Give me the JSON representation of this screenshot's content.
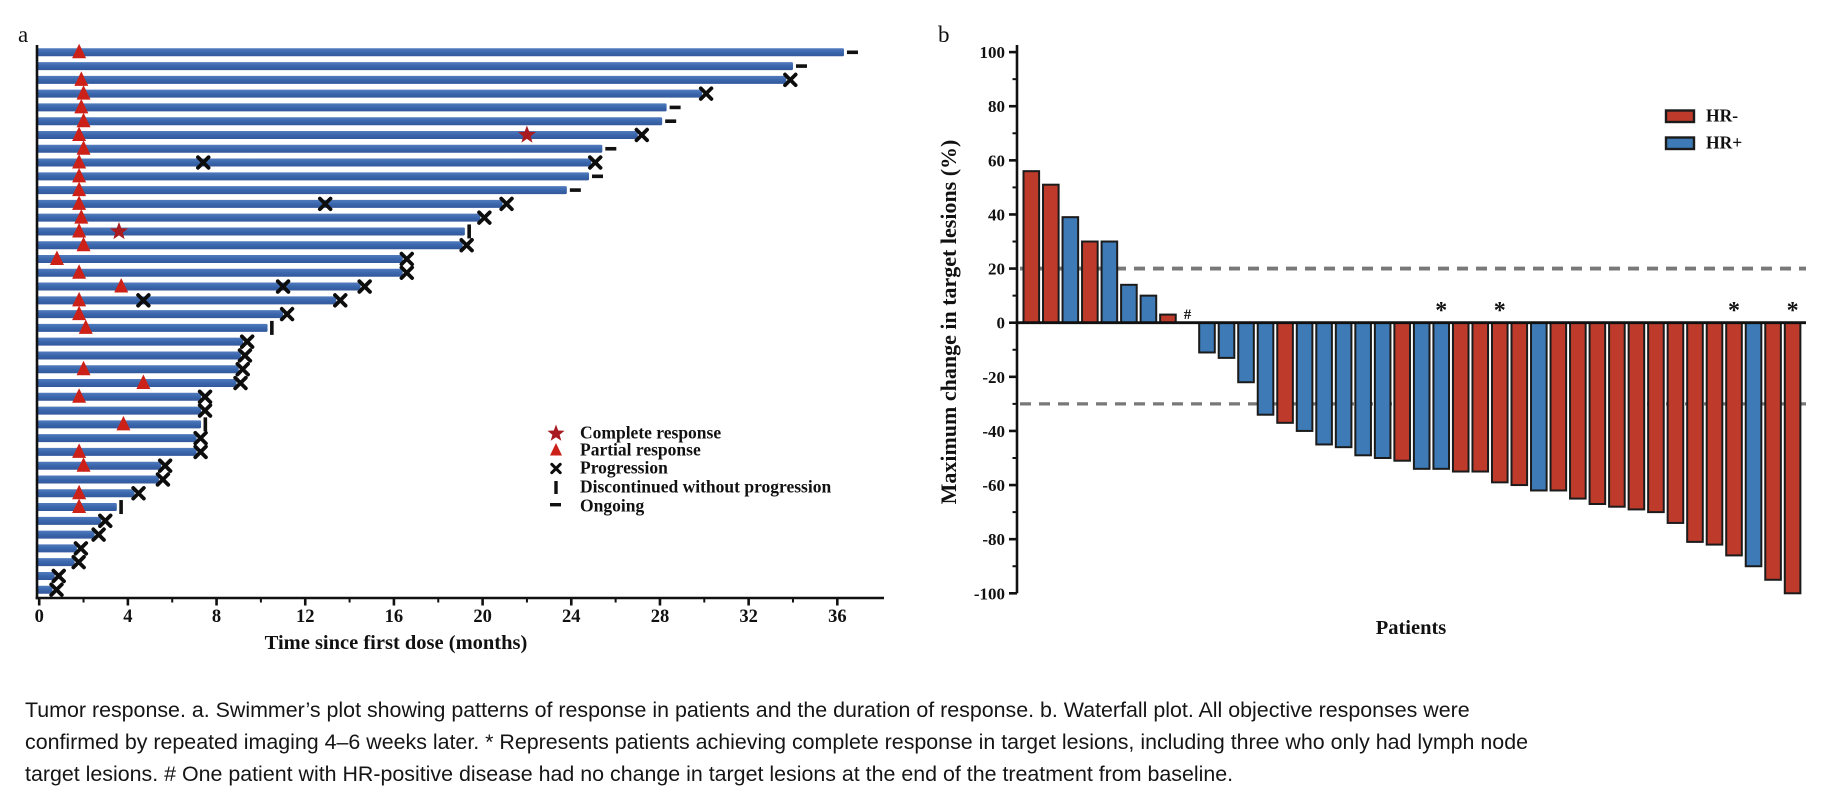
{
  "figure": {
    "caption": "Tumor response. a. Swimmer’s plot showing patterns of response in patients and the duration of response. b. Waterfall plot. All objective responses were confirmed by repeated imaging 4–6 weeks later. * Represents patients achieving complete response in target lesions, including three who only had lymph node target lesions. # One patient with HR-positive disease had no change in target lesions at the end of the treatment from baseline.",
    "panel_a_letter": "a",
    "panel_b_letter": "b",
    "panel_a_xlabel": "Time since first dose (months)",
    "panel_b_ylabel": "Maximum change in target lesions (%)",
    "panel_b_xlabel": "Patients"
  },
  "chart_data": [
    {
      "type": "bar",
      "subtype": "swimmer",
      "title": "a",
      "xlabel": "Time since first dose (months)",
      "xlim": [
        0,
        38
      ],
      "x_ticks": [
        0,
        4,
        8,
        12,
        16,
        20,
        24,
        28,
        32,
        36
      ],
      "x_minor_step": 2,
      "grid": false,
      "bar_color": "#3A66AC",
      "bar_color_light": "#507ABD",
      "marker_colors": {
        "complete_response": "#A81B20",
        "partial_response": "#CC2118",
        "progression": "#111111"
      },
      "legend_position": "lower-right-inside",
      "legend": [
        {
          "icon": "star-icon",
          "label": "Complete response"
        },
        {
          "icon": "triangle-icon",
          "label": "Partial response"
        },
        {
          "icon": "x-icon",
          "label": "Progression"
        },
        {
          "icon": "vbar-icon",
          "label": "Discontinued without progression"
        },
        {
          "icon": "dash-icon",
          "label": "Ongoing"
        }
      ],
      "patients": [
        {
          "duration": 36.3,
          "pr": 1.8,
          "cr": null,
          "progression": [],
          "end": "ongoing"
        },
        {
          "duration": 34.0,
          "pr": null,
          "cr": null,
          "progression": [],
          "end": "ongoing"
        },
        {
          "duration": 33.7,
          "pr": 1.9,
          "cr": null,
          "progression": [],
          "end": "progression"
        },
        {
          "duration": 29.9,
          "pr": 2.0,
          "cr": null,
          "progression": [],
          "end": "progression"
        },
        {
          "duration": 28.3,
          "pr": 1.9,
          "cr": null,
          "progression": [],
          "end": "ongoing"
        },
        {
          "duration": 28.1,
          "pr": 2.0,
          "cr": null,
          "progression": [],
          "end": "ongoing"
        },
        {
          "duration": 27.0,
          "pr": 1.8,
          "cr": 22.0,
          "progression": [],
          "end": "progression"
        },
        {
          "duration": 25.4,
          "pr": 2.0,
          "cr": null,
          "progression": [],
          "end": "ongoing"
        },
        {
          "duration": 24.9,
          "pr": 1.8,
          "cr": null,
          "progression": [
            7.4
          ],
          "end": "progression"
        },
        {
          "duration": 24.8,
          "pr": 1.8,
          "cr": null,
          "progression": [],
          "end": "ongoing"
        },
        {
          "duration": 23.8,
          "pr": 1.8,
          "cr": null,
          "progression": [],
          "end": "ongoing"
        },
        {
          "duration": 20.9,
          "pr": 1.8,
          "cr": null,
          "progression": [
            12.9
          ],
          "end": "progression"
        },
        {
          "duration": 19.9,
          "pr": 1.9,
          "cr": null,
          "progression": [],
          "end": "progression"
        },
        {
          "duration": 19.2,
          "pr": 1.8,
          "cr": 3.6,
          "progression": [],
          "end": "discontinued"
        },
        {
          "duration": 19.1,
          "pr": 2.0,
          "cr": null,
          "progression": [],
          "end": "progression"
        },
        {
          "duration": 16.4,
          "pr": 0.8,
          "cr": null,
          "progression": [],
          "end": "progression"
        },
        {
          "duration": 16.4,
          "pr": 1.8,
          "cr": null,
          "progression": [],
          "end": "progression"
        },
        {
          "duration": 14.5,
          "pr": 3.7,
          "cr": null,
          "progression": [
            11.0
          ],
          "end": "progression"
        },
        {
          "duration": 13.4,
          "pr": 1.8,
          "cr": null,
          "progression": [
            4.7
          ],
          "end": "progression"
        },
        {
          "duration": 11.0,
          "pr": 1.8,
          "cr": null,
          "progression": [],
          "end": "progression"
        },
        {
          "duration": 10.3,
          "pr": 2.1,
          "cr": null,
          "progression": [],
          "end": "discontinued"
        },
        {
          "duration": 9.2,
          "pr": null,
          "cr": null,
          "progression": [],
          "end": "progression"
        },
        {
          "duration": 9.1,
          "pr": null,
          "cr": null,
          "progression": [],
          "end": "progression"
        },
        {
          "duration": 9.0,
          "pr": 2.0,
          "cr": null,
          "progression": [],
          "end": "progression"
        },
        {
          "duration": 8.9,
          "pr": 4.7,
          "cr": null,
          "progression": [],
          "end": "progression"
        },
        {
          "duration": 7.3,
          "pr": 1.8,
          "cr": null,
          "progression": [],
          "end": "progression"
        },
        {
          "duration": 7.3,
          "pr": null,
          "cr": null,
          "progression": [],
          "end": "progression"
        },
        {
          "duration": 7.3,
          "pr": 3.8,
          "cr": null,
          "progression": [],
          "end": "discontinued"
        },
        {
          "duration": 7.1,
          "pr": null,
          "cr": null,
          "progression": [],
          "end": "progression"
        },
        {
          "duration": 7.1,
          "pr": 1.8,
          "cr": null,
          "progression": [],
          "end": "progression"
        },
        {
          "duration": 5.5,
          "pr": 2.0,
          "cr": null,
          "progression": [],
          "end": "progression"
        },
        {
          "duration": 5.4,
          "pr": null,
          "cr": null,
          "progression": [],
          "end": "progression"
        },
        {
          "duration": 4.3,
          "pr": 1.8,
          "cr": null,
          "progression": [],
          "end": "progression"
        },
        {
          "duration": 3.5,
          "pr": 1.8,
          "cr": null,
          "progression": [],
          "end": "discontinued"
        },
        {
          "duration": 2.8,
          "pr": null,
          "cr": null,
          "progression": [],
          "end": "progression"
        },
        {
          "duration": 2.5,
          "pr": null,
          "cr": null,
          "progression": [],
          "end": "progression"
        },
        {
          "duration": 1.7,
          "pr": null,
          "cr": null,
          "progression": [],
          "end": "progression"
        },
        {
          "duration": 1.6,
          "pr": null,
          "cr": null,
          "progression": [],
          "end": "progression"
        },
        {
          "duration": 0.7,
          "pr": null,
          "cr": null,
          "progression": [],
          "end": "progression"
        },
        {
          "duration": 0.6,
          "pr": null,
          "cr": null,
          "progression": [],
          "end": "progression"
        }
      ]
    },
    {
      "type": "bar",
      "subtype": "waterfall",
      "title": "b",
      "ylabel": "Maximum change in target lesions (%)",
      "xlabel": "Patients",
      "ylim": [
        -100,
        100
      ],
      "y_ticks": [
        100,
        80,
        60,
        40,
        20,
        0,
        -20,
        -40,
        -60,
        -80,
        -100
      ],
      "y_minor_step": 10,
      "grid": false,
      "reference_lines": [
        {
          "y": 20,
          "style": "dashed"
        },
        {
          "y": -30,
          "style": "dashed"
        }
      ],
      "reference_line_color": "#787878",
      "series_colors": {
        "HR-": "#BE3B2C",
        "HR+": "#3D7AB6"
      },
      "legend_position": "upper-right-inside",
      "legend": [
        {
          "label": "HR-",
          "color": "#BE3B2C"
        },
        {
          "label": "HR+",
          "color": "#3D7AB6"
        }
      ],
      "annotations": {
        "complete_response_target": "*",
        "no_change": "#"
      },
      "bars": [
        {
          "value": 56,
          "group": "HR-"
        },
        {
          "value": 51,
          "group": "HR-"
        },
        {
          "value": 39,
          "group": "HR+"
        },
        {
          "value": 30,
          "group": "HR-"
        },
        {
          "value": 30,
          "group": "HR+"
        },
        {
          "value": 14,
          "group": "HR+"
        },
        {
          "value": 10,
          "group": "HR+"
        },
        {
          "value": 3,
          "group": "HR-"
        },
        {
          "value": 0,
          "group": "HR+",
          "annotation": "#"
        },
        {
          "value": -11,
          "group": "HR+"
        },
        {
          "value": -13,
          "group": "HR+"
        },
        {
          "value": -22,
          "group": "HR+"
        },
        {
          "value": -34,
          "group": "HR+"
        },
        {
          "value": -37,
          "group": "HR-"
        },
        {
          "value": -40,
          "group": "HR+"
        },
        {
          "value": -45,
          "group": "HR+"
        },
        {
          "value": -46,
          "group": "HR+"
        },
        {
          "value": -49,
          "group": "HR+"
        },
        {
          "value": -50,
          "group": "HR+"
        },
        {
          "value": -51,
          "group": "HR-"
        },
        {
          "value": -54,
          "group": "HR+"
        },
        {
          "value": -54,
          "group": "HR+",
          "annotation": "*"
        },
        {
          "value": -55,
          "group": "HR-"
        },
        {
          "value": -55,
          "group": "HR-"
        },
        {
          "value": -59,
          "group": "HR-",
          "annotation": "*"
        },
        {
          "value": -60,
          "group": "HR-"
        },
        {
          "value": -62,
          "group": "HR+"
        },
        {
          "value": -62,
          "group": "HR-"
        },
        {
          "value": -65,
          "group": "HR-"
        },
        {
          "value": -67,
          "group": "HR-"
        },
        {
          "value": -68,
          "group": "HR-"
        },
        {
          "value": -69,
          "group": "HR-"
        },
        {
          "value": -70,
          "group": "HR-"
        },
        {
          "value": -74,
          "group": "HR-"
        },
        {
          "value": -81,
          "group": "HR-"
        },
        {
          "value": -82,
          "group": "HR-"
        },
        {
          "value": -86,
          "group": "HR-",
          "annotation": "*"
        },
        {
          "value": -90,
          "group": "HR+"
        },
        {
          "value": -95,
          "group": "HR-"
        },
        {
          "value": -100,
          "group": "HR-",
          "annotation": "*"
        }
      ]
    }
  ]
}
